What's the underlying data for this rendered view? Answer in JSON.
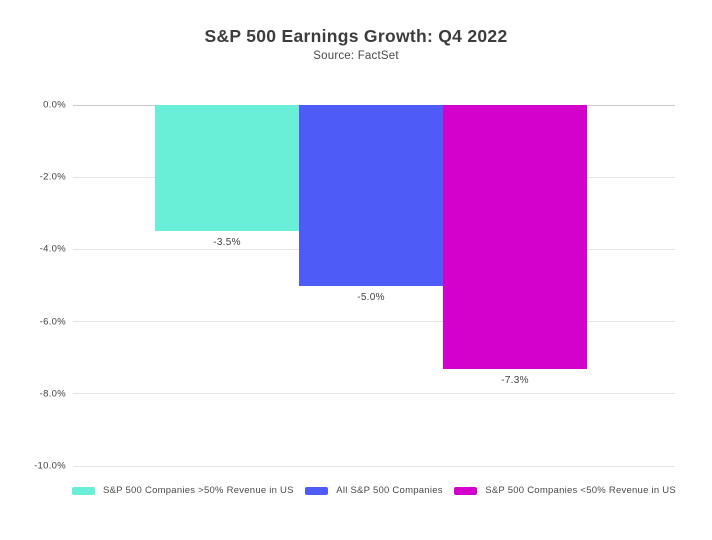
{
  "header": {
    "title": "S&P 500 Earnings Growth: Q4 2022",
    "subtitle": "Source: FactSet"
  },
  "chart_data": {
    "type": "bar",
    "title": "S&P 500 Earnings Growth: Q4 2022",
    "subtitle": "Source: FactSet",
    "categories": [
      "S&P 500 Companies >50% Revenue in US",
      "All S&P 500 Companies",
      "S&P 500 Companies <50% Revenue in US"
    ],
    "values": [
      -3.5,
      -5.0,
      -7.3
    ],
    "value_labels": [
      "-3.5%",
      "-5.0%",
      "-7.3%"
    ],
    "bar_colors": [
      "#69EFD7",
      "#4F5BF7",
      "#D400CB"
    ],
    "xlabel": "",
    "ylabel": "",
    "ylim": [
      0,
      -10
    ],
    "yticks": [
      0,
      -2,
      -4,
      -6,
      -8,
      -10
    ],
    "ytick_labels": [
      "0.0%",
      "-2.0%",
      "-4.0%",
      "-6.0%",
      "-8.0%",
      "-10.0%"
    ],
    "grid": true,
    "legend_position": "bottom",
    "legend": [
      {
        "label": "S&P 500 Companies >50% Revenue in US",
        "color": "#69EFD7"
      },
      {
        "label": "All S&P 500 Companies",
        "color": "#4F5BF7"
      },
      {
        "label": "S&P 500 Companies <50% Revenue in US",
        "color": "#D400CB"
      }
    ]
  },
  "colors": {
    "teal": "#69EFD7",
    "blue": "#4F5BF7",
    "magenta": "#D400CB",
    "grid": "#e4e4e4",
    "zero_line": "#c9c9c9",
    "text": "#3d3d3d"
  }
}
